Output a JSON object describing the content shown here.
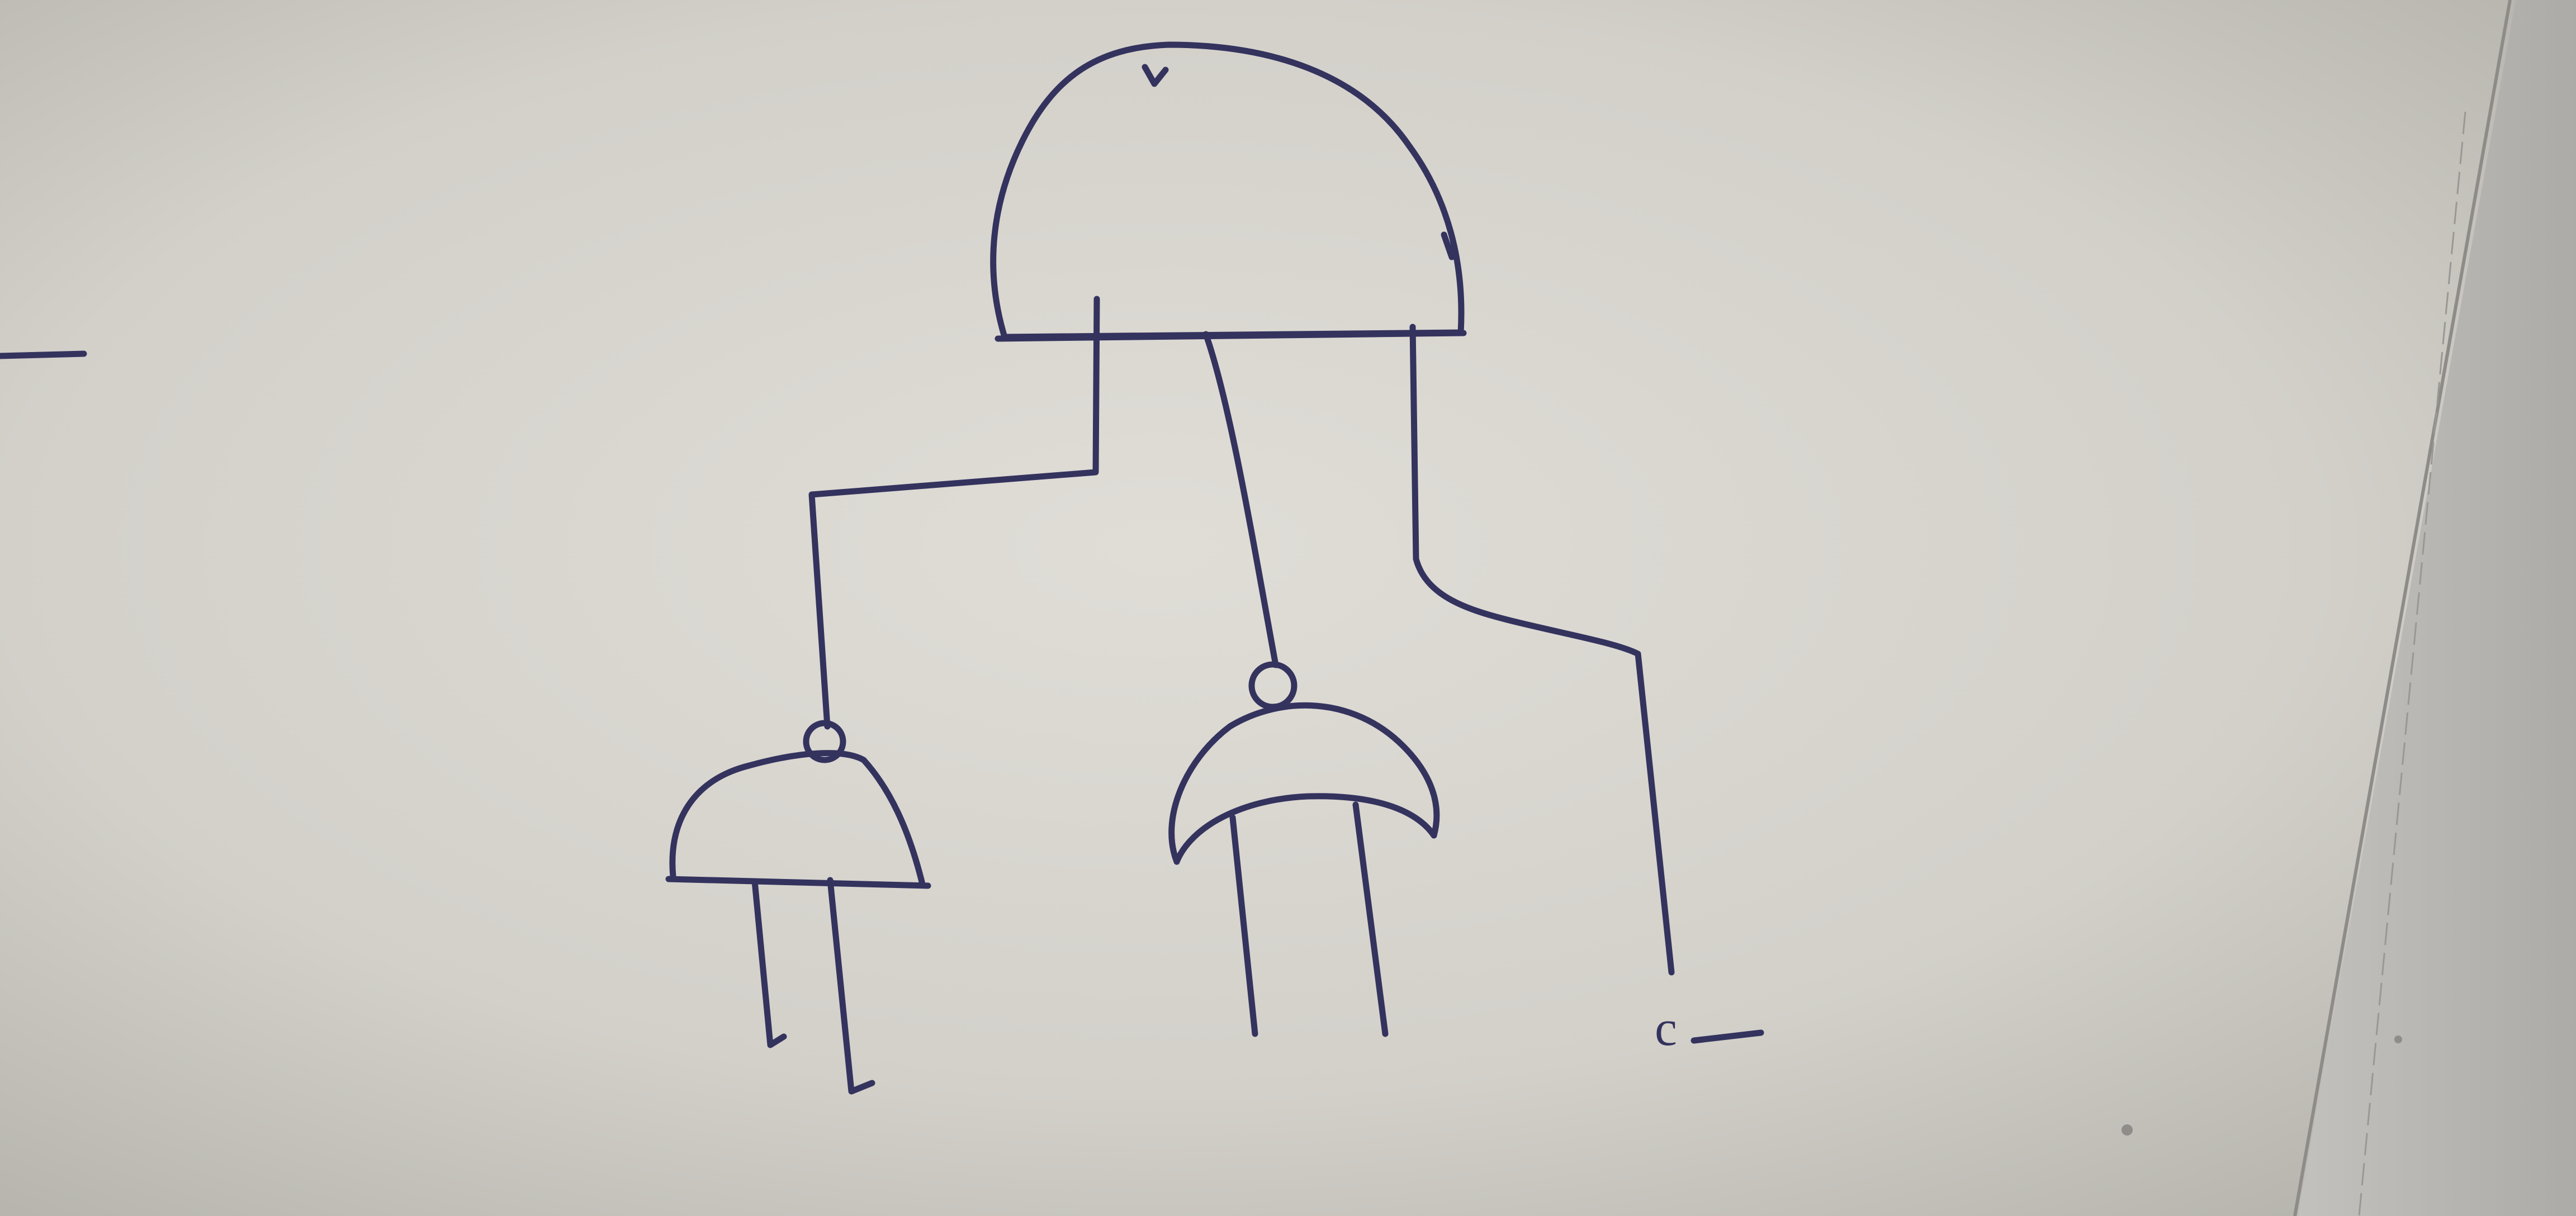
{
  "diagram": {
    "input_label": "c",
    "colors": {
      "ink": "#34335e",
      "paper": "#d6d3cd",
      "board_edge": "#b9b7b3"
    },
    "gates": [
      {
        "id": "output-and-gate",
        "kind": "and",
        "inverted_output": false
      },
      {
        "id": "left-nand-gate",
        "kind": "and",
        "inverted_output": true
      },
      {
        "id": "middle-nor-gate",
        "kind": "or",
        "inverted_output": true
      }
    ]
  }
}
